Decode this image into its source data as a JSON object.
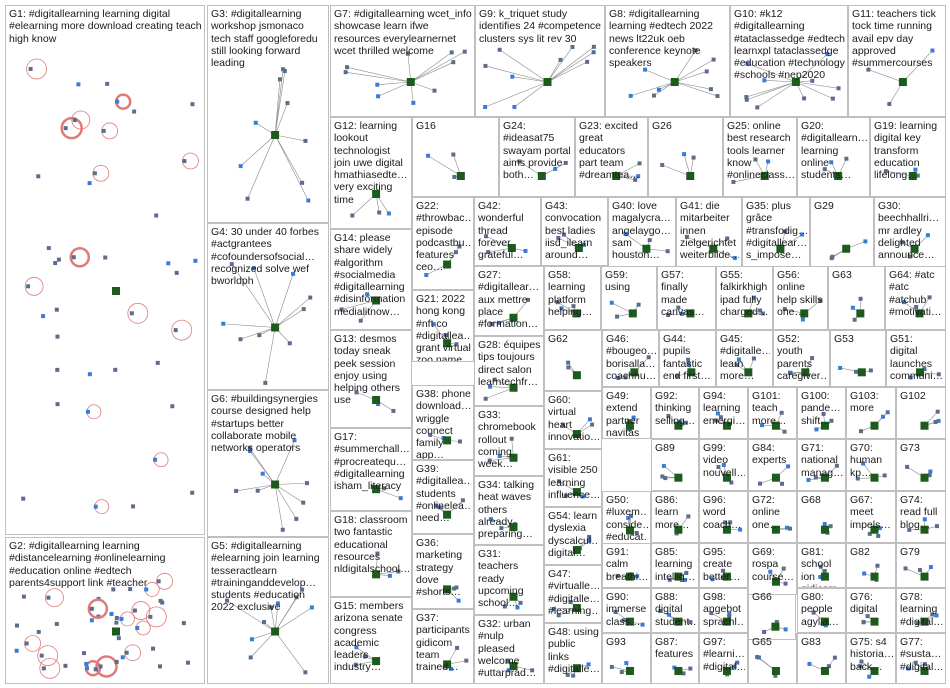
{
  "groups": [
    {
      "id": "G1",
      "label": "G1: #digitallearning learning digital #elearning more download creating teach high know"
    },
    {
      "id": "G2",
      "label": "G2: #digitallearning learning #distancelearning #onlinelearning #education online #edtech parents4support link #teacher"
    },
    {
      "id": "G3",
      "label": "G3: #digitallearning workshop jsmonaco tech staff googleforedu still looking forward leading"
    },
    {
      "id": "G4",
      "label": "G4: 30 under 40 forbes #actgrantees #cofoundersofsocial… recognized solve wef bworldph"
    },
    {
      "id": "G5",
      "label": "G5: #digitallearning #elearning join learning tesseractlearn #traininganddevelop… students #education 2022 exclusive"
    },
    {
      "id": "G6",
      "label": "G6: #buildingsynergies course designed help #startups better collaborate mobile networks operators"
    },
    {
      "id": "G7",
      "label": "G7: #digitallearning wcet_info showcase learn ifwe resources everylearnernet wcet thrilled welcome"
    },
    {
      "id": "G8",
      "label": "G8: #digitallearning learning #edtech 2022 news lt22uk oeb conference keynote speakers"
    },
    {
      "id": "G9",
      "label": "G9: k_triquet study identifies 24 #competence clusters sys lit rev 30"
    },
    {
      "id": "G10",
      "label": "G10: #k12 #digitallearning #tataclassedge #edtech learnxpl tataclassedge #education #technology #schools #nep2020"
    },
    {
      "id": "G11",
      "label": "G11: teachers tick tock time running avail epv day approved #summercourses"
    },
    {
      "id": "G12",
      "label": "G12: learning lookout technologist join uwe digital hmathiasedte… very exciting time"
    },
    {
      "id": "G13",
      "label": "G13: desmos today sneak peek session enjoy using helping others use"
    },
    {
      "id": "G14",
      "label": "G14: please share widely #algorithm #socialmedia #digitallearning #disinformation medialitnow…"
    },
    {
      "id": "G15",
      "label": "G15: members arizona senate congress academic leaders industry…"
    },
    {
      "id": "G16",
      "label": "G16"
    },
    {
      "id": "G17",
      "label": "G17: #summerchall… #procreatequ… #digitallearning isham_literacy"
    },
    {
      "id": "G18",
      "label": "G18: classroom two fantastic educational resources nldigitalschool…"
    },
    {
      "id": "G19",
      "label": "G19: learning digital key transform education lifelong…"
    },
    {
      "id": "G20",
      "label": "G20: #digitallearn… learning online students…"
    },
    {
      "id": "G21",
      "label": "G21: 2022 hong kong #nft co #digitallea… grant virtual zoo name"
    },
    {
      "id": "G22",
      "label": "G22: #throwbac… episode podcastbu… features ceo…"
    },
    {
      "id": "G23",
      "label": "G23: excited great educators part team #dreamtea…"
    },
    {
      "id": "G24",
      "label": "G24: #ideasat75 swayam portal aims provide both…"
    },
    {
      "id": "G25",
      "label": "G25: online best research tools learner know #onlineclass…"
    },
    {
      "id": "G26",
      "label": "G26"
    },
    {
      "id": "G27",
      "label": "G27: #digitallear… aux mettre place #formation…"
    },
    {
      "id": "G28",
      "label": "G28: équipes tips toujours direct salon learntechfr…"
    },
    {
      "id": "G29",
      "label": "G29"
    },
    {
      "id": "G30",
      "label": "G30: beechhallri… mr ardley delighted announce…"
    },
    {
      "id": "G31",
      "label": "G31: teachers ready upcoming school…"
    },
    {
      "id": "G32",
      "label": "G32: urban #nulp pleased welcome #uttarprad…"
    },
    {
      "id": "G33",
      "label": "G33: chromebook rollout coming week…"
    },
    {
      "id": "G34",
      "label": "G34: talking heat waves others already preparing…"
    },
    {
      "id": "G35",
      "label": "G35: plus grâce #transfodig… #digitallear… s_impose…"
    },
    {
      "id": "G36",
      "label": "G36: marketing strategy dove #shorts…"
    },
    {
      "id": "G37",
      "label": "G37: participants gidicom team trained…"
    },
    {
      "id": "G38",
      "label": "G38: phone download… wriggle connect family app…"
    },
    {
      "id": "G39",
      "label": "G39: #digitallea… students #onlinelea… need…"
    },
    {
      "id": "G40",
      "label": "G40: love magalycra… angelaygo… sam houston…"
    },
    {
      "id": "G41",
      "label": "G41: die mitarbeiter innen zielgerichtet weiterbilde…"
    },
    {
      "id": "G42",
      "label": "G42: wonderful thread forever grateful…"
    },
    {
      "id": "G43",
      "label": "G43: convocation best ladies iisd_ilearn around…"
    },
    {
      "id": "G44",
      "label": "G44: pupils fantastic end first…"
    },
    {
      "id": "G45",
      "label": "G45: #digitalle… learn more…"
    },
    {
      "id": "G46",
      "label": "G46: #bougeo… borisalla… coachhu…"
    },
    {
      "id": "G47",
      "label": "G47: #virtualle… #digitalle… #learning…"
    },
    {
      "id": "G48",
      "label": "G48: using public links #digitalle…"
    },
    {
      "id": "G49",
      "label": "G49: extend partner navitas warm…"
    },
    {
      "id": "G50",
      "label": "G50: #luxem… conside… #educat… major…"
    },
    {
      "id": "G51",
      "label": "G51: digital launches communi…"
    },
    {
      "id": "G52",
      "label": "G52: youth parents caregiver…"
    },
    {
      "id": "G53",
      "label": "G53"
    },
    {
      "id": "G54",
      "label": "G54: learn dyslexia dyscalcul… digital…"
    },
    {
      "id": "G55",
      "label": "G55: falkirkhigh ipad fully charged…"
    },
    {
      "id": "G56",
      "label": "G56: online help skills one…"
    },
    {
      "id": "G57",
      "label": "G57: finally made canvas…"
    },
    {
      "id": "G58",
      "label": "G58: learning platform helping…"
    },
    {
      "id": "G59",
      "label": "G59: using"
    },
    {
      "id": "G60",
      "label": "G60: virtual heart innovatio…"
    },
    {
      "id": "G61",
      "label": "G61: visible 250 learning influence…"
    },
    {
      "id": "G62",
      "label": "G62"
    },
    {
      "id": "G63",
      "label": "G63"
    },
    {
      "id": "G64",
      "label": "G64: #atc #atc #atchub #motivati…"
    },
    {
      "id": "G65",
      "label": "G65"
    },
    {
      "id": "G66",
      "label": "G66"
    },
    {
      "id": "G67",
      "label": "G67: meet impels…"
    },
    {
      "id": "G68",
      "label": "G68"
    },
    {
      "id": "G69",
      "label": "G69: rospa course…"
    },
    {
      "id": "G70",
      "label": "G70: human kp…"
    },
    {
      "id": "G71",
      "label": "G71: national manag…"
    },
    {
      "id": "G72",
      "label": "G72: online one…"
    },
    {
      "id": "G73",
      "label": "G73"
    },
    {
      "id": "G74",
      "label": "G74: read full blog…"
    },
    {
      "id": "G75",
      "label": "G75: s4 historia… back…"
    },
    {
      "id": "G76",
      "label": "G76: digital"
    },
    {
      "id": "G77",
      "label": "G77: #susta… #digital…"
    },
    {
      "id": "G78",
      "label": "G78: learning #digital…"
    },
    {
      "id": "G79",
      "label": "G79"
    },
    {
      "id": "G80",
      "label": "G80: people agylia…"
    },
    {
      "id": "G81",
      "label": "G81: school ion gidicom"
    },
    {
      "id": "G82",
      "label": "G82"
    },
    {
      "id": "G83",
      "label": "G83"
    },
    {
      "id": "G84",
      "label": "G84: experts"
    },
    {
      "id": "G85",
      "label": "G85: learning intellig…"
    },
    {
      "id": "G86",
      "label": "G86: learn more…"
    },
    {
      "id": "G87",
      "label": "G87: features"
    },
    {
      "id": "G88",
      "label": "G88: digital student…"
    },
    {
      "id": "G89",
      "label": "G89"
    },
    {
      "id": "G90",
      "label": "G90: immerse class…"
    },
    {
      "id": "G91",
      "label": "G91: calm breathi…"
    },
    {
      "id": "G92",
      "label": "G92: thinking selling…"
    },
    {
      "id": "G93",
      "label": "G93"
    },
    {
      "id": "G94",
      "label": "G94: learning emergi…"
    },
    {
      "id": "G95",
      "label": "G95: create better…"
    },
    {
      "id": "G96",
      "label": "G96: word coach…"
    },
    {
      "id": "G97",
      "label": "G97: #learni… #digital…"
    },
    {
      "id": "G98",
      "label": "G98: angebot sprachl…"
    },
    {
      "id": "G99",
      "label": "G99: video nouvell…"
    },
    {
      "id": "G100",
      "label": "G100: pande… shift…"
    },
    {
      "id": "G101",
      "label": "G101: teach more…"
    },
    {
      "id": "G102",
      "label": "G102"
    },
    {
      "id": "G103",
      "label": "G103: more"
    }
  ],
  "colors": {
    "border": "#bfbfbf",
    "edge": "#8a8a8a",
    "loop": "#e07a7a",
    "node": "#5a6e8c",
    "accent_green": "#1d5a1d",
    "accent_blue": "#3a7ad8"
  }
}
